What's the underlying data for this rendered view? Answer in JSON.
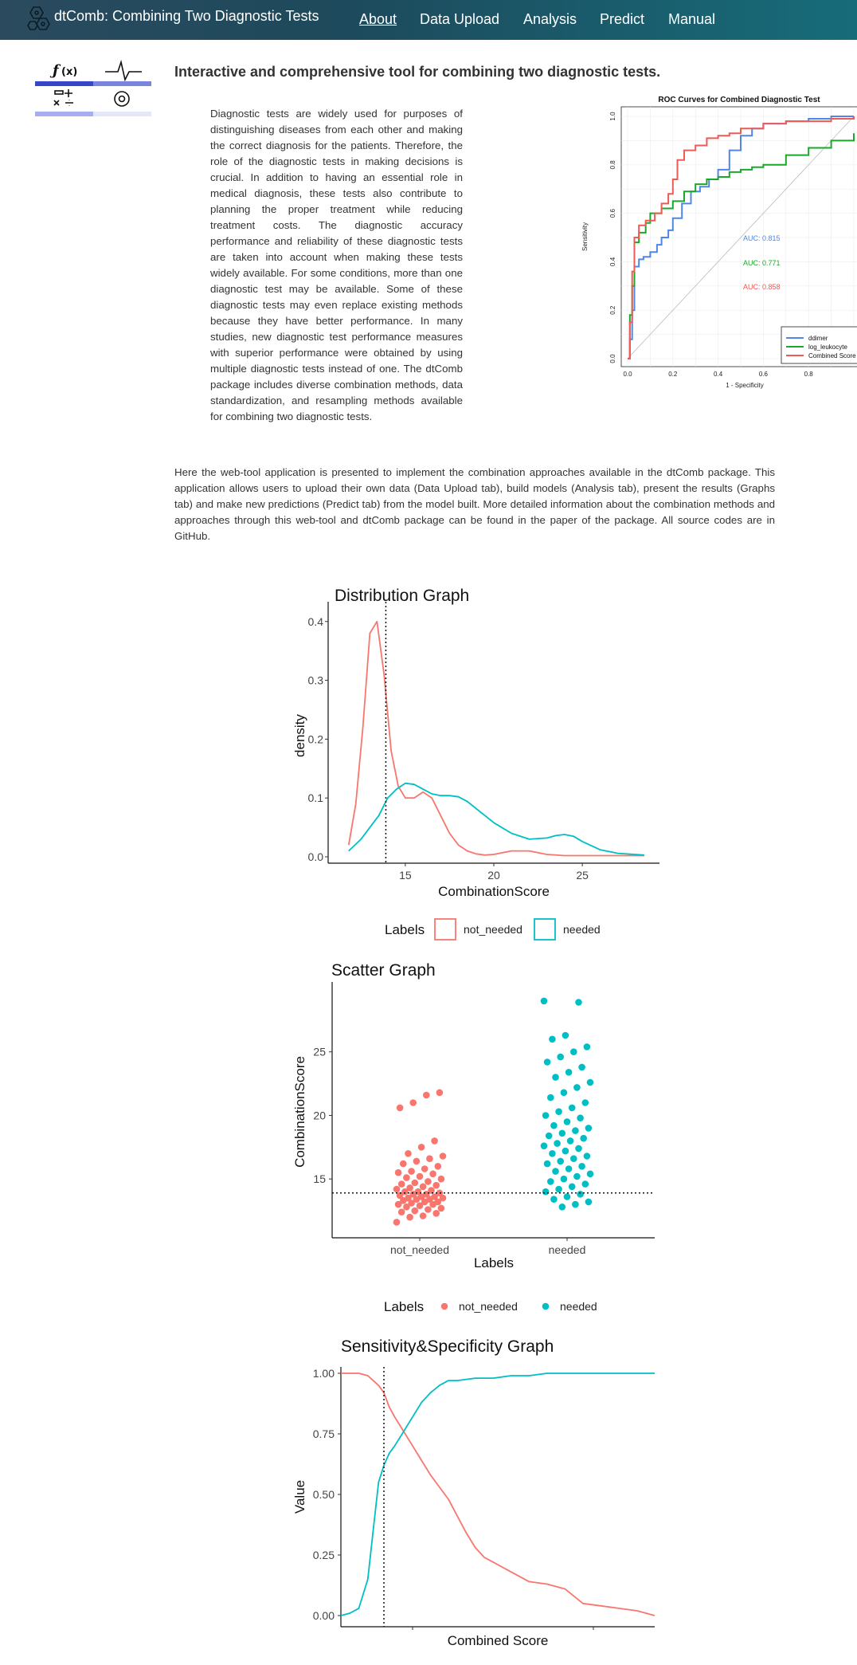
{
  "navbar": {
    "brand": "dtComb: Combining Two Diagnostic Tests",
    "items": [
      {
        "label": "About",
        "active": true
      },
      {
        "label": "Data Upload"
      },
      {
        "label": "Analysis"
      },
      {
        "label": "Predict"
      },
      {
        "label": "Manual"
      }
    ]
  },
  "icons": {
    "logo": "hexagon-molecule-icon",
    "side": "function-signal-calculator-gear-icon"
  },
  "main": {
    "heading": "Interactive and comprehensive tool for combining two diagnostic tests.",
    "intro": "Diagnostic tests are widely used for purposes of distinguishing diseases from each other and making the correct diagnosis for the patients. Therefore, the role of the diagnostic tests in making decisions is crucial. In addition to having an essential role in medical diagnosis, these tests also contribute to planning the proper treatment while reducing treatment costs. The diagnostic accuracy performance and reliability of these diagnostic tests are taken into account when making these tests widely available. For some conditions, more than one diagnostic test may be available. Some of these diagnostic tests may even replace existing methods because they have better performance. In many studies, new diagnostic test performance measures with superior performance were obtained by using multiple diagnostic tests instead of one. The dtComb package includes diverse combination methods, data standardization, and resampling methods available for combining two diagnostic tests.",
    "paragraph2": "Here the web-tool application is presented to implement the combination approaches available in the dtComb package. This application allows users to upload their own data (Data Upload tab), build models (Analysis tab), present the results (Graphs tab) and make new predictions (Predict tab) from the model built. More detailed information about the combination methods and approaches through this web-tool and dtComb package can be found in the paper of the package. All source codes are in GitHub."
  },
  "colors": {
    "red": "#f8766d",
    "teal": "#00bfc4",
    "blue": "#4f86e8",
    "green": "#1aa82a",
    "roc_red": "#ee5a55"
  },
  "chart_data": [
    {
      "type": "line",
      "title": "ROC Curves for Combined Diagnostic Test",
      "xlabel": "1 - Specificity",
      "ylabel": "Sensitivity",
      "xlim": [
        0,
        1
      ],
      "ylim": [
        0,
        1
      ],
      "x_ticks": [
        "0.0",
        "0.2",
        "0.4",
        "0.6",
        "0.8"
      ],
      "y_ticks": [
        "0.0",
        "0.2",
        "0.4",
        "0.6",
        "0.8",
        "1.0"
      ],
      "legend_position": "bottom-right",
      "annotations": [
        "AUC: 0.815",
        "AUC: 0.771",
        "AUC: 0.858"
      ],
      "series": [
        {
          "name": "ddimer",
          "color": "#4f86e8",
          "x": [
            0,
            0.01,
            0.02,
            0.03,
            0.05,
            0.07,
            0.1,
            0.13,
            0.15,
            0.18,
            0.2,
            0.24,
            0.28,
            0.32,
            0.36,
            0.4,
            0.45,
            0.5,
            0.55,
            0.6,
            0.65,
            0.7,
            0.8,
            0.9,
            1.0
          ],
          "y": [
            0,
            0.08,
            0.2,
            0.38,
            0.41,
            0.42,
            0.44,
            0.47,
            0.5,
            0.53,
            0.58,
            0.64,
            0.69,
            0.71,
            0.74,
            0.78,
            0.86,
            0.92,
            0.95,
            0.97,
            0.97,
            0.98,
            0.99,
            1.0,
            1.0
          ]
        },
        {
          "name": "log_leukocyte",
          "color": "#1aa82a",
          "x": [
            0,
            0.01,
            0.02,
            0.03,
            0.05,
            0.08,
            0.1,
            0.15,
            0.2,
            0.25,
            0.3,
            0.35,
            0.4,
            0.45,
            0.5,
            0.55,
            0.6,
            0.7,
            0.8,
            0.9,
            1.0
          ],
          "y": [
            0,
            0.18,
            0.3,
            0.48,
            0.52,
            0.56,
            0.6,
            0.62,
            0.65,
            0.69,
            0.72,
            0.74,
            0.75,
            0.77,
            0.78,
            0.79,
            0.8,
            0.84,
            0.87,
            0.9,
            0.93
          ]
        },
        {
          "name": "Combined Score",
          "color": "#ee5a55",
          "x": [
            0,
            0.01,
            0.02,
            0.03,
            0.05,
            0.08,
            0.12,
            0.15,
            0.18,
            0.2,
            0.22,
            0.25,
            0.3,
            0.35,
            0.4,
            0.45,
            0.5,
            0.6,
            0.7,
            0.8,
            0.9,
            1.0
          ],
          "y": [
            0,
            0.15,
            0.36,
            0.5,
            0.55,
            0.57,
            0.6,
            0.64,
            0.68,
            0.74,
            0.82,
            0.86,
            0.88,
            0.91,
            0.92,
            0.93,
            0.95,
            0.97,
            0.98,
            0.98,
            0.99,
            1.0
          ]
        }
      ]
    },
    {
      "type": "line",
      "title": "Distribution Graph",
      "xlabel": "CombinationScore",
      "ylabel": "density",
      "xlim": [
        11,
        29
      ],
      "ylim": [
        0,
        0.42
      ],
      "x_ticks": [
        15,
        20,
        25
      ],
      "y_ticks": [
        0.0,
        0.1,
        0.2,
        0.3,
        0.4
      ],
      "legend_title": "Labels",
      "legend_position": "bottom",
      "cutoff": 13.9,
      "series": [
        {
          "name": "not_needed",
          "color": "#f8766d",
          "x": [
            11.8,
            12.2,
            12.6,
            13.0,
            13.4,
            13.8,
            14.2,
            14.6,
            15.0,
            15.5,
            16.0,
            16.5,
            17.0,
            17.5,
            18.0,
            18.5,
            19.0,
            19.5,
            20.0,
            21.0,
            22.0,
            23.0,
            24.0,
            25.0,
            26.0,
            27.0,
            28.5
          ],
          "y": [
            0.02,
            0.09,
            0.22,
            0.38,
            0.4,
            0.31,
            0.18,
            0.12,
            0.1,
            0.1,
            0.11,
            0.1,
            0.07,
            0.04,
            0.02,
            0.01,
            0.005,
            0.003,
            0.004,
            0.01,
            0.01,
            0.004,
            0.002,
            0.002,
            0.002,
            0.002,
            0.002
          ]
        },
        {
          "name": "needed",
          "color": "#00bfc4",
          "x": [
            11.8,
            12.5,
            13.0,
            13.5,
            14.0,
            14.5,
            15.0,
            15.5,
            16.0,
            16.5,
            17.0,
            17.5,
            18.0,
            18.5,
            19.0,
            19.5,
            20.0,
            21.0,
            22.0,
            23.0,
            23.5,
            24.0,
            24.5,
            25.0,
            26.0,
            27.0,
            28.5
          ],
          "y": [
            0.01,
            0.03,
            0.05,
            0.07,
            0.1,
            0.115,
            0.125,
            0.123,
            0.115,
            0.107,
            0.104,
            0.104,
            0.102,
            0.094,
            0.082,
            0.07,
            0.058,
            0.04,
            0.03,
            0.032,
            0.036,
            0.038,
            0.035,
            0.026,
            0.012,
            0.006,
            0.003
          ]
        }
      ]
    },
    {
      "type": "scatter",
      "title": "Scatter Graph",
      "xlabel": "Labels",
      "ylabel": "CombinationScore",
      "categories": [
        "not_needed",
        "needed"
      ],
      "ylim": [
        11,
        30
      ],
      "y_ticks": [
        15,
        20,
        25
      ],
      "legend_title": "Labels",
      "legend_position": "bottom",
      "cutoff": 13.9,
      "series": [
        {
          "name": "not_needed",
          "color": "#f8766d",
          "values": [
            11.6,
            12.0,
            12.1,
            12.3,
            12.4,
            12.5,
            12.6,
            12.7,
            12.8,
            12.9,
            13.0,
            13.0,
            13.1,
            13.2,
            13.2,
            13.3,
            13.4,
            13.4,
            13.5,
            13.5,
            13.6,
            13.6,
            13.7,
            13.8,
            13.8,
            13.9,
            14.0,
            14.0,
            14.1,
            14.2,
            14.3,
            14.4,
            14.5,
            14.6,
            14.7,
            14.8,
            15.0,
            15.1,
            15.2,
            15.4,
            15.5,
            15.6,
            15.8,
            16.0,
            16.2,
            16.4,
            16.6,
            16.8,
            17.0,
            17.5,
            18.0,
            20.6,
            21.0,
            21.6,
            21.8
          ]
        },
        {
          "name": "needed",
          "color": "#00bfc4",
          "values": [
            12.8,
            13.0,
            13.2,
            13.4,
            13.6,
            13.8,
            14.0,
            14.2,
            14.4,
            14.6,
            14.8,
            15.0,
            15.2,
            15.4,
            15.6,
            15.8,
            16.0,
            16.2,
            16.4,
            16.6,
            16.8,
            17.0,
            17.2,
            17.4,
            17.6,
            17.8,
            18.0,
            18.2,
            18.4,
            18.6,
            18.8,
            19.0,
            19.2,
            19.5,
            19.8,
            20.0,
            20.3,
            20.6,
            21.0,
            21.4,
            21.8,
            22.2,
            22.6,
            23.0,
            23.4,
            23.8,
            24.2,
            24.6,
            25.0,
            25.4,
            26.0,
            26.3,
            28.9,
            29.0
          ]
        }
      ]
    },
    {
      "type": "line",
      "title": "Sensitivity&Specificity Graph",
      "xlabel": "Combined Score",
      "ylabel": "Value",
      "ylim": [
        0,
        1
      ],
      "y_ticks": [
        0.0,
        0.25,
        0.5,
        0.75,
        1.0
      ],
      "cutoff": 13.9,
      "series": [
        {
          "color": "#f8766d",
          "x": [
            11.5,
            12.0,
            12.5,
            13.0,
            13.3,
            13.6,
            13.9,
            14.2,
            14.5,
            15.0,
            15.5,
            16.0,
            16.5,
            17.0,
            17.5,
            18.0,
            18.5,
            19.0,
            19.5,
            20.0,
            21.0,
            22.0,
            23.0,
            24.0,
            25.0,
            26.0,
            27.0,
            28.0,
            29.0
          ],
          "y": [
            1.0,
            1.0,
            1.0,
            0.99,
            0.97,
            0.95,
            0.92,
            0.86,
            0.82,
            0.76,
            0.7,
            0.64,
            0.58,
            0.53,
            0.48,
            0.41,
            0.34,
            0.28,
            0.24,
            0.22,
            0.18,
            0.14,
            0.13,
            0.11,
            0.05,
            0.04,
            0.03,
            0.02,
            0.0
          ]
        },
        {
          "color": "#00bfc4",
          "x": [
            11.5,
            12.0,
            12.5,
            13.0,
            13.3,
            13.6,
            13.9,
            14.2,
            14.5,
            15.0,
            15.5,
            16.0,
            16.5,
            17.0,
            17.5,
            18.0,
            18.5,
            19.0,
            20.0,
            21.0,
            22.0,
            23.0,
            24.0,
            25.0,
            26.0,
            27.0,
            28.0,
            29.0
          ],
          "y": [
            0.0,
            0.01,
            0.03,
            0.15,
            0.35,
            0.55,
            0.62,
            0.67,
            0.7,
            0.76,
            0.82,
            0.88,
            0.92,
            0.95,
            0.97,
            0.97,
            0.975,
            0.98,
            0.98,
            0.99,
            0.99,
            1.0,
            1.0,
            1.0,
            1.0,
            1.0,
            1.0,
            1.0
          ]
        }
      ]
    }
  ]
}
